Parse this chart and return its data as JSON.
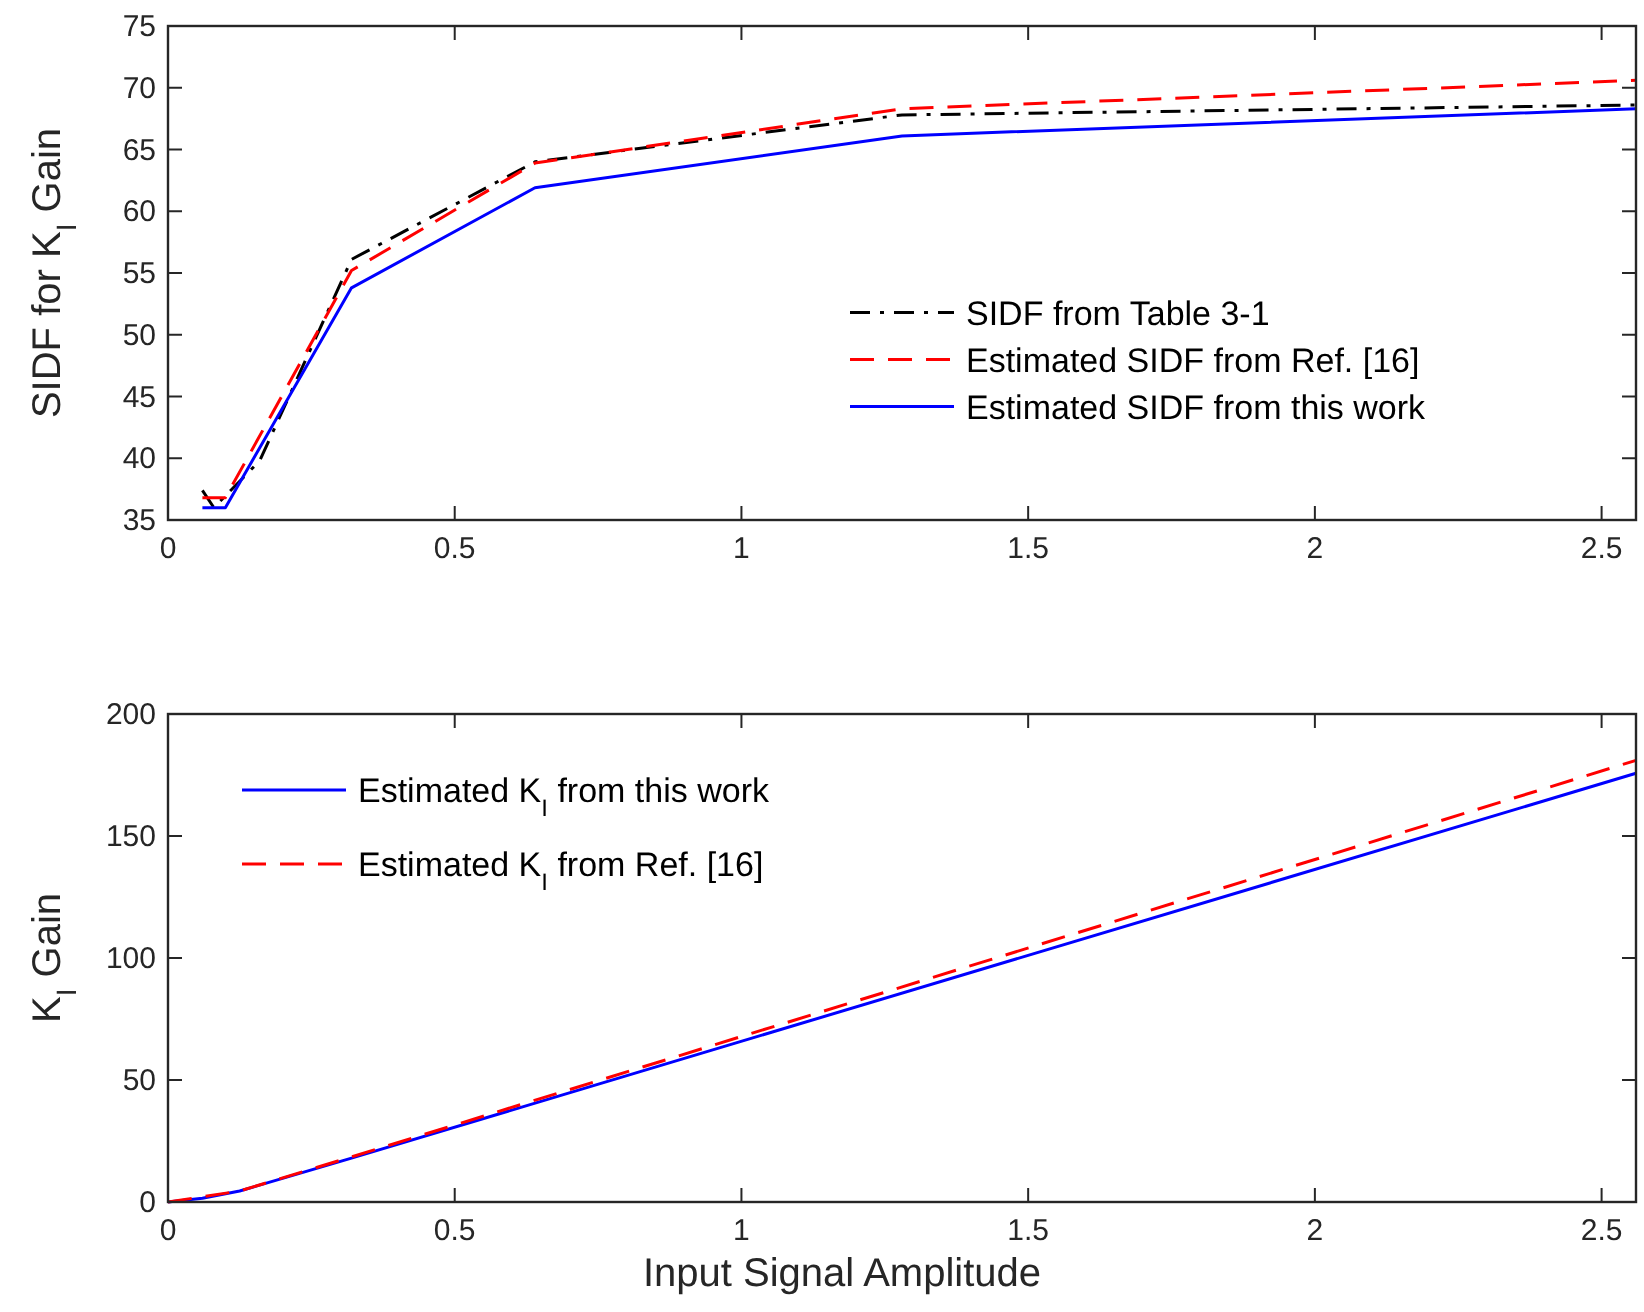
{
  "chart_data": [
    {
      "type": "line",
      "ylabel": "SIDF for K$_{I}$ Gain",
      "xlim": [
        0,
        2.56
      ],
      "ylim": [
        35,
        75
      ],
      "xticks": [
        0,
        0.5,
        1,
        1.5,
        2,
        2.5
      ],
      "yticks": [
        35,
        40,
        45,
        50,
        55,
        60,
        65,
        70,
        75
      ],
      "legend": "right",
      "series": [
        {
          "name": "SIDF from Table 3-1",
          "color": "#000000",
          "line_style": "dashdot",
          "x": [
            0.06,
            0.08,
            0.16,
            0.32,
            0.64,
            1.28,
            2.56
          ],
          "values": [
            37.4,
            36,
            39.8,
            56.1,
            64,
            67.8,
            68.6
          ]
        },
        {
          "name": "Estimated SIDF from Ref. [16]",
          "color": "#ff0000",
          "line_style": "dashed",
          "x": [
            0.06,
            0.1,
            0.32,
            0.64,
            1.28,
            2.56
          ],
          "values": [
            36.8,
            36.8,
            55.2,
            63.9,
            68.3,
            70.6
          ]
        },
        {
          "name": "Estimated SIDF from this work",
          "color": "#0000ff",
          "line_style": "solid",
          "x": [
            0.06,
            0.1,
            0.32,
            0.64,
            1.28,
            2.56
          ],
          "values": [
            36,
            36,
            53.8,
            61.9,
            66.1,
            68.3
          ]
        }
      ]
    },
    {
      "type": "line",
      "xlabel": "Input Signal Amplitude",
      "ylabel": "K$_{I}$ Gain",
      "xlim": [
        0,
        2.56
      ],
      "ylim": [
        0,
        200
      ],
      "xticks": [
        0,
        0.5,
        1,
        1.5,
        2,
        2.5
      ],
      "yticks": [
        0,
        50,
        100,
        150,
        200
      ],
      "legend": "top left",
      "series": [
        {
          "name": "Estimated K$_{I}$ from this work",
          "color": "#0000ff",
          "line_style": "solid",
          "x": [
            0,
            0.06,
            0.125,
            0.32,
            2.56
          ],
          "values": [
            0,
            1.5,
            4.5,
            18,
            175.7
          ]
        },
        {
          "name": "Estimated K$_{I}$ from Ref. [16]",
          "color": "#ff0000",
          "line_style": "dashed",
          "x": [
            0,
            0.125,
            0.32,
            2.56
          ],
          "values": [
            0,
            4.5,
            18.5,
            181
          ]
        }
      ]
    }
  ]
}
